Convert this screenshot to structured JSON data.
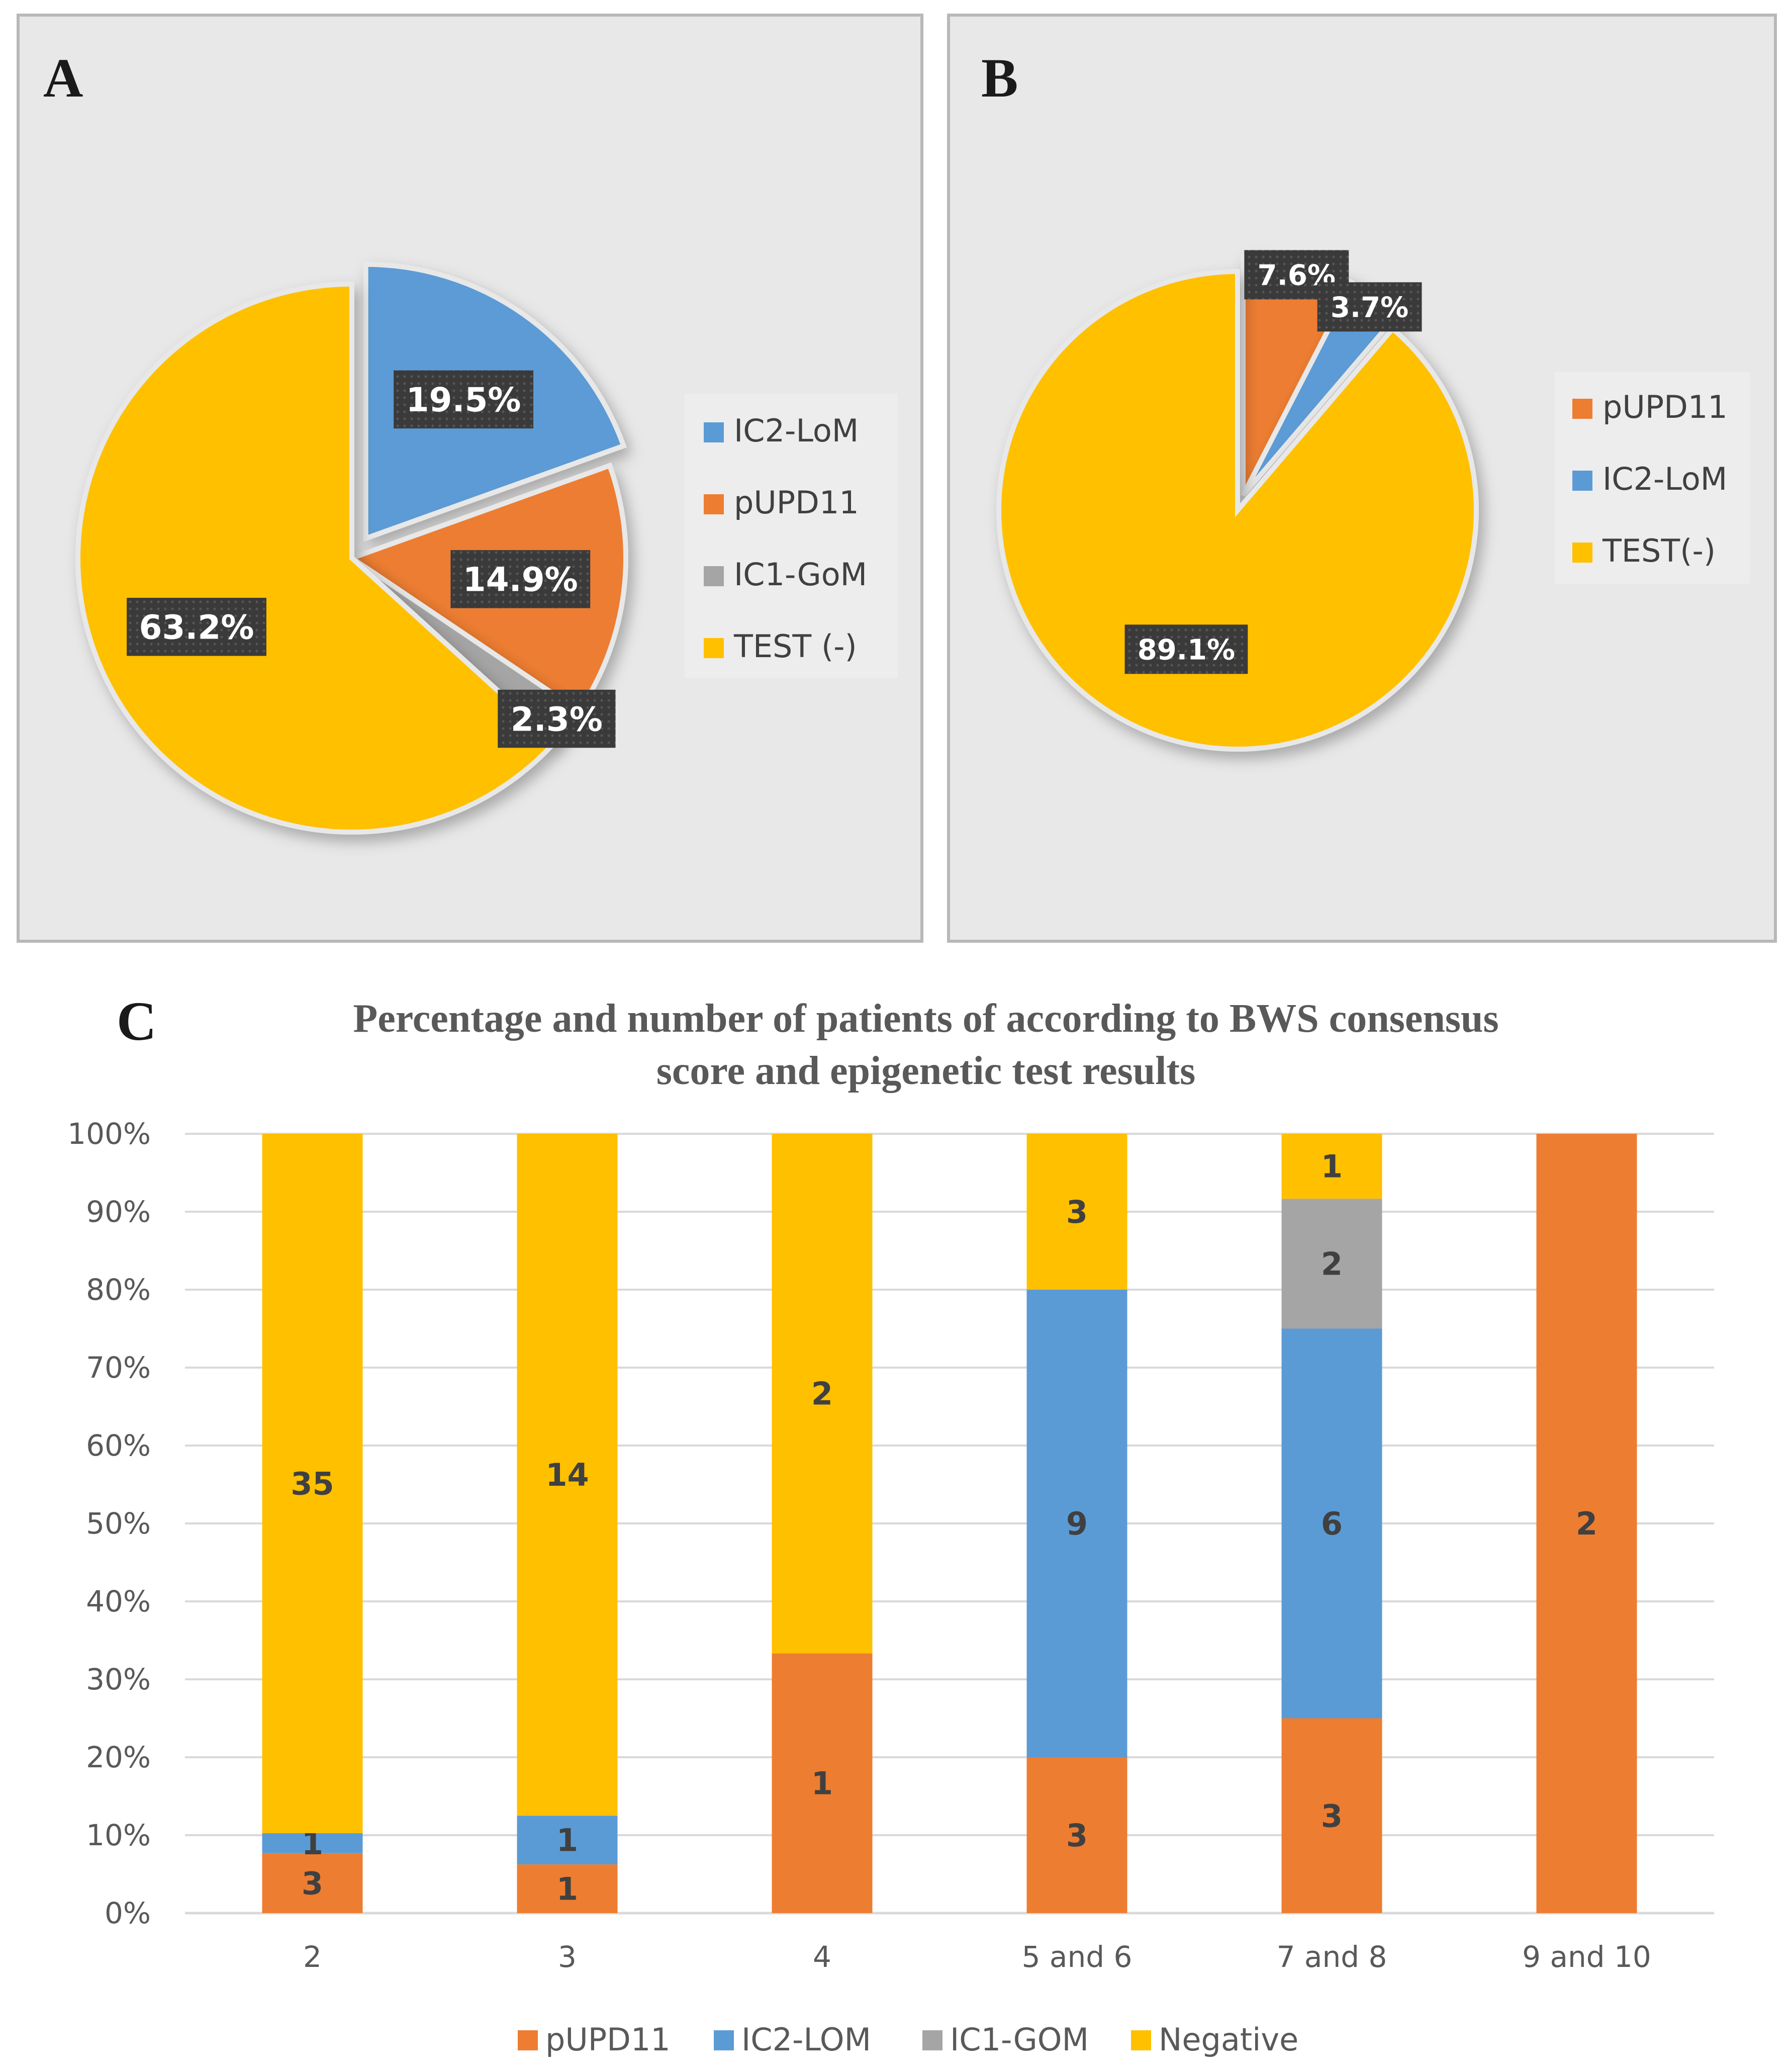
{
  "colors": {
    "orange": "#ED7D31",
    "blue": "#5B9BD5",
    "gray": "#A5A5A5",
    "yellow": "#FFC000",
    "panel_bg": "#E8E8E8",
    "label_box": "#3A3A3A"
  },
  "chart_data": [
    {
      "type": "pie",
      "panel": "A",
      "slices": [
        {
          "name": "IC2-LoM",
          "value": 19.5,
          "label": "19.5%",
          "color": "#5B9BD5",
          "exploded": true
        },
        {
          "name": "pUPD11",
          "value": 14.9,
          "label": "14.9%",
          "color": "#ED7D31",
          "exploded": false
        },
        {
          "name": "IC1-GoM",
          "value": 2.3,
          "label": "2.3%",
          "color": "#A5A5A5",
          "exploded": false
        },
        {
          "name": "TEST (-)",
          "value": 63.2,
          "label": "63.2%",
          "color": "#FFC000",
          "exploded": false
        }
      ],
      "legend": [
        "IC2-LoM",
        "pUPD11",
        "IC1-GoM",
        "TEST (-)"
      ],
      "legend_position": "right"
    },
    {
      "type": "pie",
      "panel": "B",
      "slices": [
        {
          "name": "pUPD11",
          "value": 7.6,
          "label": "7.6%",
          "color": "#ED7D31",
          "exploded": false
        },
        {
          "name": "IC2-LoM",
          "value": 3.7,
          "label": "3.7%",
          "color": "#5B9BD5",
          "exploded": false
        },
        {
          "name": "TEST(-)",
          "value": 89.1,
          "label": "89.1%",
          "color": "#FFC000",
          "exploded": true
        }
      ],
      "legend": [
        "pUPD11",
        "IC2-LoM",
        "TEST(-)"
      ],
      "legend_position": "right"
    },
    {
      "type": "bar",
      "stacked": "percent",
      "panel": "C",
      "title_lines": [
        "Percentage and number of patients of  according to BWS consensus",
        "score and epigenetic test results"
      ],
      "categories": [
        "2",
        "3",
        "4",
        "5 and 6",
        "7 and 8",
        "9 and 10"
      ],
      "series": [
        {
          "name": "pUPD11",
          "color": "#ED7D31",
          "values": [
            3,
            1,
            1,
            3,
            3,
            2
          ]
        },
        {
          "name": "IC2-LOM",
          "color": "#5B9BD5",
          "values": [
            1,
            1,
            0,
            9,
            6,
            0
          ]
        },
        {
          "name": "IC1-GOM",
          "color": "#A5A5A5",
          "values": [
            0,
            0,
            0,
            0,
            2,
            0
          ]
        },
        {
          "name": "Negative",
          "color": "#FFC000",
          "values": [
            35,
            14,
            2,
            3,
            1,
            0
          ]
        }
      ],
      "yticks": [
        "0%",
        "10%",
        "20%",
        "30%",
        "40%",
        "50%",
        "60%",
        "70%",
        "80%",
        "90%",
        "100%"
      ],
      "ylim": [
        0,
        100
      ],
      "grid": true,
      "legend_position": "bottom"
    }
  ]
}
